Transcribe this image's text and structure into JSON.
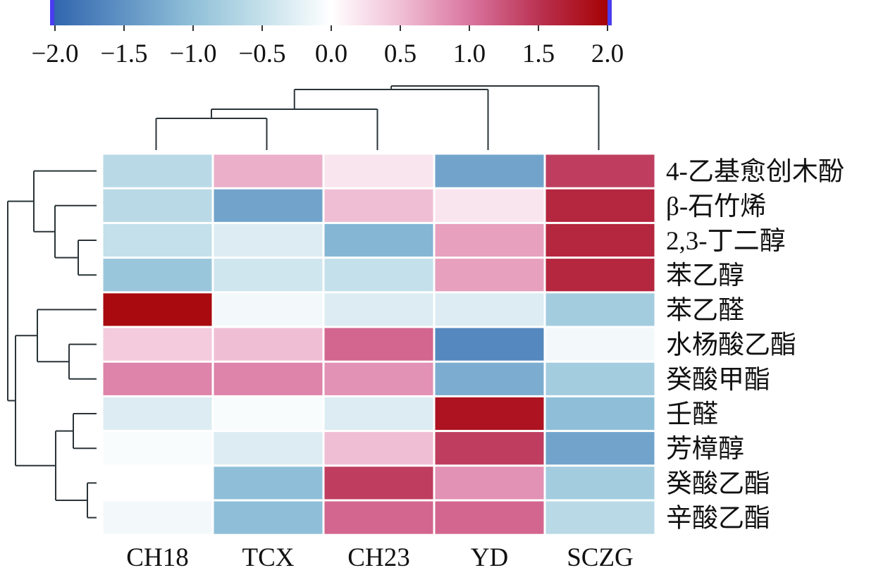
{
  "chart_data": {
    "type": "heatmap",
    "title": "",
    "columns": [
      "CH18",
      "TCX",
      "CH23",
      "YD",
      "SCZG"
    ],
    "rows": [
      "4-乙基愈创木酚",
      "β-石竹烯",
      "2,3-丁二醇",
      "苯乙醇",
      "苯乙醛",
      "水杨酸乙酯",
      "癸酸甲酯",
      "壬醛",
      "芳樟醇",
      "癸酸乙酯",
      "辛酸乙酯"
    ],
    "values": [
      [
        -0.6,
        0.6,
        0.2,
        -1.3,
        1.4
      ],
      [
        -0.6,
        -1.3,
        0.5,
        0.2,
        1.6
      ],
      [
        -0.5,
        -0.3,
        -1.1,
        0.7,
        1.6
      ],
      [
        -0.9,
        -0.4,
        -0.5,
        0.7,
        1.6
      ],
      [
        1.9,
        -0.1,
        -0.3,
        -0.3,
        -0.8
      ],
      [
        0.4,
        0.5,
        1.1,
        -1.6,
        -0.1
      ],
      [
        0.9,
        0.9,
        0.8,
        -1.2,
        -0.8
      ],
      [
        -0.3,
        -0.05,
        -0.3,
        1.8,
        -1.0
      ],
      [
        -0.05,
        -0.3,
        0.5,
        1.4,
        -1.3
      ],
      [
        0.0,
        -1.0,
        1.4,
        0.8,
        -0.8
      ],
      [
        -0.1,
        -1.0,
        1.1,
        1.1,
        -0.6
      ]
    ],
    "colorbar": {
      "range": [
        -2.0,
        2.0
      ],
      "ticks": [
        "−2.0",
        "−1.5",
        "−1.0",
        "−0.5",
        "0.0",
        "0.5",
        "1.0",
        "1.5",
        "2.0"
      ],
      "colors": {
        "low": "#2f64ae",
        "mid": "#ffffff",
        "high": "#a50000",
        "end_marker": "#4a3df0"
      },
      "placement": "top"
    },
    "column_dendrogram": "((((CH18,TCX),CH23),YD),SCZG)",
    "row_dendrogram": "((4-乙基愈创木酚,(β-石竹烯,(2,3-丁二醇,苯乙醇))),((苯乙醛,(水杨酸乙酯,癸酸甲酯)),((壬醛,芳樟醇),(癸酸乙酯,辛酸乙酯))))"
  }
}
